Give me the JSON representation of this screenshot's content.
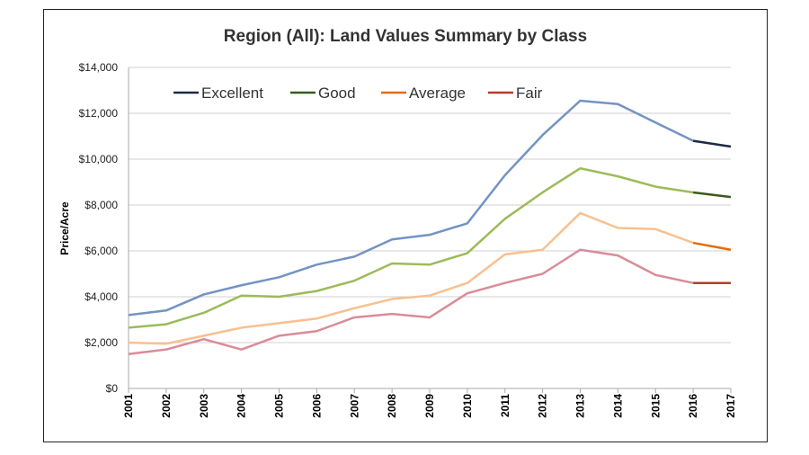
{
  "chart_data": {
    "type": "line",
    "title": "Region (All):  Land Values Summary by Class",
    "xlabel": "",
    "ylabel": "Price/Acre",
    "ylim": [
      0,
      14000
    ],
    "yticks": [
      0,
      2000,
      4000,
      6000,
      8000,
      10000,
      12000,
      14000
    ],
    "ytick_labels": [
      "$0",
      "$2,000",
      "$4,000",
      "$6,000",
      "$8,000",
      "$10,000",
      "$12,000",
      "$14,000"
    ],
    "grid": "horizontal",
    "legend_position": "top-left, inside plot",
    "x": [
      "2001",
      "2002",
      "2003",
      "2004",
      "2005",
      "2006",
      "2007",
      "2008",
      "2009",
      "2010",
      "2011",
      "2012",
      "2013",
      "2014",
      "2015",
      "2016",
      "2017"
    ],
    "series": [
      {
        "name": "Excellent",
        "color": "#7393c4",
        "legend_color": "#1c2a44",
        "values": [
          3200,
          3400,
          4100,
          4500,
          4850,
          5400,
          5750,
          6500,
          6700,
          7200,
          9300,
          11050,
          12550,
          12400,
          11600,
          10800,
          10550
        ]
      },
      {
        "name": "Good",
        "color": "#9bbb59",
        "legend_color": "#3b5a1c",
        "values": [
          2650,
          2800,
          3300,
          4050,
          4000,
          4250,
          4700,
          5450,
          5400,
          5900,
          7400,
          8550,
          9600,
          9250,
          8800,
          8550,
          8350
        ]
      },
      {
        "name": "Average",
        "color": "#f9c08f",
        "legend_color": "#e36c0a",
        "values": [
          2000,
          1950,
          2300,
          2650,
          2850,
          3050,
          3500,
          3900,
          4050,
          4600,
          5850,
          6050,
          7650,
          7000,
          6950,
          6350,
          6050
        ]
      },
      {
        "name": "Fair",
        "color": "#d98c98",
        "legend_color": "#b83c2a",
        "values": [
          1500,
          1700,
          2150,
          1700,
          2300,
          2500,
          3100,
          3250,
          3100,
          4150,
          4600,
          5000,
          6050,
          5800,
          4950,
          4600,
          4600
        ]
      }
    ],
    "note_segment": "final 2016-2017 segment drawn in legend color"
  }
}
